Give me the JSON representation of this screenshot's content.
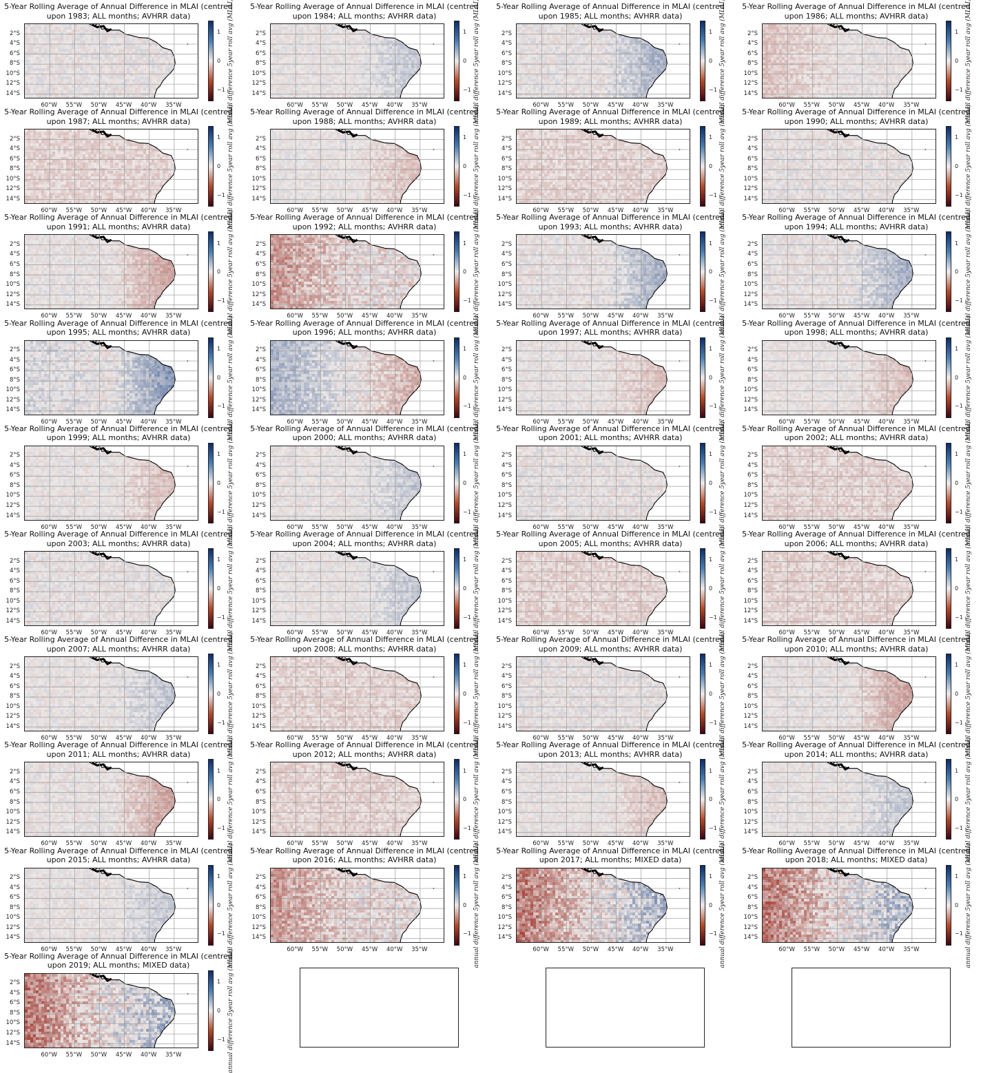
{
  "chart_data": {
    "type": "heatmap",
    "title_prefix": "5-Year Rolling Average of Annual Difference in MLAI (centred",
    "title_suffix_template": "upon {year}; ALL months; {source} data)",
    "panels": [
      {
        "year": "1983",
        "source": "AVHRR",
        "pattern": "mixed-mild"
      },
      {
        "year": "1984",
        "source": "AVHRR",
        "pattern": "blue-east-mild"
      },
      {
        "year": "1985",
        "source": "AVHRR",
        "pattern": "blue-east"
      },
      {
        "year": "1986",
        "source": "AVHRR",
        "pattern": "red-west-mild"
      },
      {
        "year": "1987",
        "source": "AVHRR",
        "pattern": "red-mild"
      },
      {
        "year": "1988",
        "source": "AVHRR",
        "pattern": "red-east-mild"
      },
      {
        "year": "1989",
        "source": "AVHRR",
        "pattern": "red-mild"
      },
      {
        "year": "1990",
        "source": "AVHRR",
        "pattern": "mixed-mild"
      },
      {
        "year": "1991",
        "source": "AVHRR",
        "pattern": "red-east"
      },
      {
        "year": "1992",
        "source": "AVHRR",
        "pattern": "red-west"
      },
      {
        "year": "1993",
        "source": "AVHRR",
        "pattern": "blue-east"
      },
      {
        "year": "1994",
        "source": "AVHRR",
        "pattern": "blue-east"
      },
      {
        "year": "1995",
        "source": "AVHRR",
        "pattern": "blue-east-strong"
      },
      {
        "year": "1996",
        "source": "AVHRR",
        "pattern": "blue-west-red-east"
      },
      {
        "year": "1997",
        "source": "AVHRR",
        "pattern": "red-east-mild"
      },
      {
        "year": "1998",
        "source": "AVHRR",
        "pattern": "red-east-mild"
      },
      {
        "year": "1999",
        "source": "AVHRR",
        "pattern": "red-east-mild"
      },
      {
        "year": "2000",
        "source": "AVHRR",
        "pattern": "blue-east-mild"
      },
      {
        "year": "2001",
        "source": "AVHRR",
        "pattern": "mixed-mild"
      },
      {
        "year": "2002",
        "source": "AVHRR",
        "pattern": "red-mild"
      },
      {
        "year": "2003",
        "source": "AVHRR",
        "pattern": "mixed-mild"
      },
      {
        "year": "2004",
        "source": "AVHRR",
        "pattern": "blue-east-mild"
      },
      {
        "year": "2005",
        "source": "AVHRR",
        "pattern": "red-mild"
      },
      {
        "year": "2006",
        "source": "AVHRR",
        "pattern": "red-mild"
      },
      {
        "year": "2007",
        "source": "AVHRR",
        "pattern": "blue-east-mild"
      },
      {
        "year": "2008",
        "source": "AVHRR",
        "pattern": "red-mild"
      },
      {
        "year": "2009",
        "source": "AVHRR",
        "pattern": "mixed-mild"
      },
      {
        "year": "2010",
        "source": "AVHRR",
        "pattern": "red-east"
      },
      {
        "year": "2011",
        "source": "AVHRR",
        "pattern": "red-east"
      },
      {
        "year": "2012",
        "source": "AVHRR",
        "pattern": "red-mild"
      },
      {
        "year": "2013",
        "source": "AVHRR",
        "pattern": "red-east-mild"
      },
      {
        "year": "2014",
        "source": "AVHRR",
        "pattern": "blue-east-mild"
      },
      {
        "year": "2015",
        "source": "AVHRR",
        "pattern": "blue-east-mild"
      },
      {
        "year": "2016",
        "source": "AVHRR",
        "pattern": "red-west"
      },
      {
        "year": "2017",
        "source": "MIXED",
        "pattern": "red-west-blue-east"
      },
      {
        "year": "2018",
        "source": "MIXED",
        "pattern": "red-west-blue-east"
      },
      {
        "year": "2019",
        "source": "MIXED",
        "pattern": "red-west-blue-east"
      }
    ],
    "empty_panels": 3,
    "layout": {
      "columns": 4,
      "rows": 10
    },
    "xticks": [
      "60°W",
      "55°W",
      "50°W",
      "45°W",
      "40°W",
      "35°W"
    ],
    "xtick_values": [
      -60,
      -55,
      -50,
      -45,
      -40,
      -35
    ],
    "yticks": [
      "2°S",
      "4°S",
      "6°S",
      "8°S",
      "10°S",
      "12°S",
      "14°S"
    ],
    "ytick_values": [
      -2,
      -4,
      -6,
      -8,
      -10,
      -12,
      -14
    ],
    "xlim": [
      -65,
      -30
    ],
    "ylim": [
      -15,
      0
    ],
    "grid": true,
    "colorbar": {
      "ticks": [
        "1",
        "0",
        "−1"
      ],
      "tick_values": [
        1,
        0,
        -1
      ],
      "range": [
        -1.4,
        1.4
      ],
      "label": "annual difference 5year roll avg (MLAI)",
      "colors": {
        "high": "#0c2d6b",
        "mid_high": "#4a7fb3",
        "mid": "#eeeaea",
        "mid_low": "#b54a2a",
        "low": "#3e0412"
      }
    }
  }
}
